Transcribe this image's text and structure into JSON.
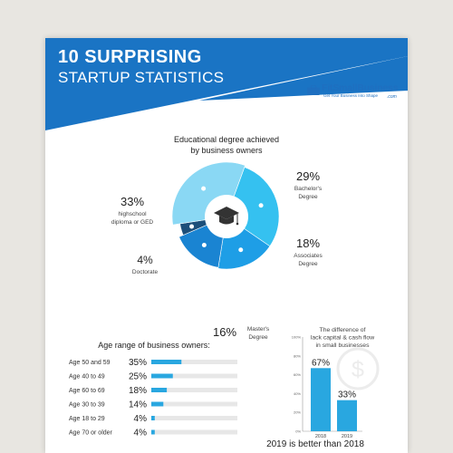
{
  "header": {
    "title_line1": "10 SURPRISING",
    "title_line2": "STARTUP STATISTICS",
    "logo_name": "FitSmallBusiness",
    "logo_tagline": "Get Your Business Into Shape",
    "logo_suffix": ".com"
  },
  "colors": {
    "brand_blue": "#1a74c4",
    "bar_blue": "#29a7e0",
    "track_gray": "#e7e7e7"
  },
  "chart_data": [
    {
      "type": "pie",
      "title": "Educational degree achieved by business owners",
      "center_icon": "graduation-cap-icon",
      "slices": [
        {
          "label": "Bachelor's Degree",
          "value": 29,
          "display": "29%",
          "color": "#35c1f0"
        },
        {
          "label": "Associates Degree",
          "value": 18,
          "display": "18%",
          "color": "#1e9ee6"
        },
        {
          "label": "Master's Degree",
          "value": 16,
          "display": "16%",
          "color": "#1a84d2"
        },
        {
          "label": "Doctorate",
          "value": 4,
          "display": "4%",
          "color": "#1d4f7a"
        },
        {
          "label": "highschool diploma or GED",
          "value": 33,
          "display": "33%",
          "color": "#8ad8f4"
        }
      ]
    },
    {
      "type": "bar",
      "orientation": "horizontal",
      "title": "Age range of business owners:",
      "categories": [
        "Age 50 and 59",
        "Age 40 to 49",
        "Age 60 to 69",
        "Age 30 to 39",
        "Age 18 to 29",
        "Age 70 or older"
      ],
      "values": [
        35,
        25,
        18,
        14,
        4,
        4
      ],
      "value_labels": [
        "35%",
        "25%",
        "18%",
        "14%",
        "4%",
        "4%"
      ],
      "xlim": [
        0,
        100
      ]
    },
    {
      "type": "bar",
      "title": "The difference of lack capital & cash flow in small businesses",
      "categories": [
        "2018",
        "2019"
      ],
      "values": [
        67,
        33
      ],
      "value_labels": [
        "67%",
        "33%"
      ],
      "ylim": [
        0,
        100
      ],
      "y_ticks": [
        "0%",
        "20%",
        "40%",
        "60%",
        "80%",
        "100%"
      ],
      "caption": "2019 is better than 2018",
      "background_icon": "dollar-circle-icon"
    }
  ]
}
